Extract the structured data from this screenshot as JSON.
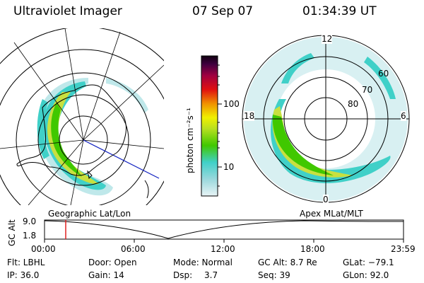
{
  "header": {
    "instrument": "Ultraviolet Imager",
    "date": "07 Sep 07",
    "time": "01:34:39 UT"
  },
  "colorbar": {
    "unit_label": "photon cm⁻²s⁻¹",
    "ticks": [
      "100",
      "10"
    ],
    "scale": "log"
  },
  "left_map": {
    "caption": "Geographic Lat/Lon"
  },
  "right_map": {
    "caption": "Apex MLat/MLT",
    "mlt_labels": {
      "top": "12",
      "left": "18",
      "right": "6",
      "bottom": "0"
    },
    "mlat_labels": [
      "60",
      "70",
      "80"
    ]
  },
  "timeline": {
    "axis_label": "GC Alt",
    "y_ticks": [
      "9.0",
      "1.8"
    ],
    "x_ticks": [
      "00:00",
      "06:00",
      "12:00",
      "18:00",
      "23:59"
    ],
    "marker_time": "01:34:39"
  },
  "info": {
    "row1": {
      "flt": "Flt: LBHL",
      "door": "Door: Open",
      "mode": "Mode: Normal",
      "gcalt": "GC Alt: 8.7 Re",
      "glat": "GLat: −79.1"
    },
    "row2": {
      "ip": "IP: 36.0",
      "gain": "Gain: 14",
      "dsp_label": "Dsp:",
      "dsp_value": "3.7",
      "seq": "Seq: 39",
      "glon": "GLon: 92.0"
    }
  },
  "colors": {
    "marker": "#e02020",
    "meridian": "#1020c0",
    "aurora_bright": "#40c800",
    "aurora_mid": "#c8e040",
    "aurora_dim": "#40d0c8",
    "aurora_faint": "#bfe8ea"
  }
}
